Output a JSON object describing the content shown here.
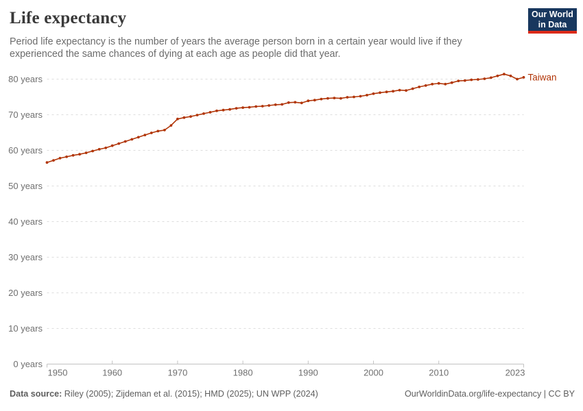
{
  "header": {
    "title": "Life expectancy",
    "subtitle_line1": "Period life expectancy is the number of years the average person born in a certain year would live if they",
    "subtitle_line2": "experienced the same chances of dying at each age as people did that year.",
    "logo_line1": "Our World",
    "logo_line2": "in Data"
  },
  "chart_data": {
    "type": "line",
    "title": "Life expectancy",
    "xlabel": "",
    "ylabel": "",
    "xlim": [
      1950,
      2023
    ],
    "ylim": [
      0,
      80
    ],
    "x_ticks": [
      1950,
      1960,
      1970,
      1980,
      1990,
      2000,
      2010,
      2023
    ],
    "y_ticks": [
      0,
      10,
      20,
      30,
      40,
      50,
      60,
      70,
      80
    ],
    "y_tick_suffix": " years",
    "grid": "horizontal-dashed",
    "legend_position": "end-of-line",
    "series": [
      {
        "name": "Taiwan",
        "color": "#b13507",
        "x": [
          1950,
          1951,
          1952,
          1953,
          1954,
          1955,
          1956,
          1957,
          1958,
          1959,
          1960,
          1961,
          1962,
          1963,
          1964,
          1965,
          1966,
          1967,
          1968,
          1969,
          1970,
          1971,
          1972,
          1973,
          1974,
          1975,
          1976,
          1977,
          1978,
          1979,
          1980,
          1981,
          1982,
          1983,
          1984,
          1985,
          1986,
          1987,
          1988,
          1989,
          1990,
          1991,
          1992,
          1993,
          1994,
          1995,
          1996,
          1997,
          1998,
          1999,
          2000,
          2001,
          2002,
          2003,
          2004,
          2005,
          2006,
          2007,
          2008,
          2009,
          2010,
          2011,
          2012,
          2013,
          2014,
          2015,
          2016,
          2017,
          2018,
          2019,
          2020,
          2021,
          2022,
          2023
        ],
        "values": [
          56.6,
          57.2,
          57.8,
          58.2,
          58.6,
          58.9,
          59.3,
          59.8,
          60.3,
          60.7,
          61.3,
          61.9,
          62.5,
          63.1,
          63.7,
          64.3,
          64.9,
          65.4,
          65.7,
          67.0,
          68.8,
          69.2,
          69.5,
          69.9,
          70.3,
          70.7,
          71.1,
          71.3,
          71.5,
          71.8,
          72.0,
          72.1,
          72.3,
          72.4,
          72.6,
          72.8,
          72.9,
          73.4,
          73.5,
          73.3,
          73.9,
          74.1,
          74.4,
          74.6,
          74.7,
          74.6,
          74.9,
          75.0,
          75.2,
          75.5,
          75.9,
          76.2,
          76.4,
          76.6,
          76.9,
          76.8,
          77.3,
          77.8,
          78.2,
          78.6,
          78.8,
          78.6,
          79.0,
          79.5,
          79.6,
          79.8,
          79.9,
          80.1,
          80.4,
          80.9,
          81.4,
          80.9,
          80.0,
          80.5
        ]
      }
    ]
  },
  "footer": {
    "datasource_label": "Data source:",
    "datasource_text": " Riley (2005); Zijdeman et al. (2015); HMD (2025); UN WPP (2024)",
    "credit": "OurWorldinData.org/life-expectancy | CC BY"
  },
  "colors": {
    "accent_series": "#b13507",
    "logo_background": "#18375e",
    "logo_bar": "#dc2a19",
    "gridline": "#dddddd",
    "axis_line": "#c2c2c2",
    "tick_label": "#6f6f6f",
    "title_text": "#3a3a3a",
    "subtitle_text": "#6b6b6b",
    "footer_text": "#5e5e5e"
  }
}
